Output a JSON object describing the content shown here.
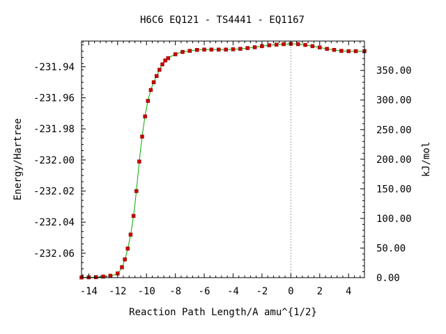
{
  "chart_data": {
    "type": "line",
    "title": "H6C6   EQ121 - TS4441 - EQ1167",
    "xlabel": "Reaction Path Length/A amu^{1/2}",
    "ylabel": "Energy/Hartree",
    "y2label": "kJ/mol",
    "xlim": [
      -14.5,
      5.1
    ],
    "ylim": [
      -232.0757,
      -231.9235
    ],
    "y2lim": [
      0.0,
      399.6
    ],
    "x_ticks": [
      -14,
      -12,
      -10,
      -8,
      -6,
      -4,
      -2,
      0,
      2,
      4
    ],
    "x_tick_labels": [
      "-14",
      "-12",
      "-10",
      "-8",
      "-6",
      "-4",
      "-2",
      "0",
      "2",
      "4"
    ],
    "y_ticks": [
      -232.06,
      -232.04,
      -232.02,
      -232.0,
      -231.98,
      -231.96,
      -231.94
    ],
    "y_tick_labels": [
      "-232.06",
      "-232.04",
      "-232.02",
      "-232.00",
      "-231.98",
      "-231.96",
      "-231.94"
    ],
    "y2_ticks": [
      0,
      50,
      100,
      150,
      200,
      250,
      300,
      350
    ],
    "y2_tick_labels": [
      "0.00",
      "50.00",
      "100.00",
      "150.00",
      "200.00",
      "250.00",
      "300.00",
      "350.00"
    ],
    "ts_x": 0,
    "grid": false,
    "legend": "none",
    "colors": {
      "line": "#00aa00",
      "points": "#cc0000"
    },
    "series": [
      {
        "x": [
          -14.5,
          -14.0,
          -13.5,
          -13.0,
          -12.5,
          -12.0,
          -11.7,
          -11.5,
          -11.3,
          -11.1,
          -10.9,
          -10.7,
          -10.5,
          -10.3,
          -10.1,
          -9.9,
          -9.7,
          -9.5,
          -9.3,
          -9.1,
          -8.9,
          -8.7,
          -8.5,
          -8.0,
          -7.5,
          -7.0,
          -6.5,
          -6.0,
          -5.5,
          -5.0,
          -4.5,
          -4.0,
          -3.5,
          -3.0,
          -2.5,
          -2.0,
          -1.5,
          -1.0,
          -0.5,
          0.0,
          0.5,
          1.0,
          1.5,
          2.0,
          2.5,
          3.0,
          3.5,
          4.0,
          4.5,
          5.1
        ],
        "y": [
          -232.0756,
          -232.0755,
          -232.0754,
          -232.075,
          -232.0745,
          -232.073,
          -232.069,
          -232.064,
          -232.057,
          -232.048,
          -232.036,
          -232.02,
          -232.001,
          -231.985,
          -231.972,
          -231.962,
          -231.955,
          -231.95,
          -231.946,
          -231.942,
          -231.9385,
          -231.936,
          -231.9345,
          -231.932,
          -231.9305,
          -231.9298,
          -231.9292,
          -231.929,
          -231.929,
          -231.929,
          -231.929,
          -231.9288,
          -231.9285,
          -231.928,
          -231.9275,
          -231.9268,
          -231.9262,
          -231.9258,
          -231.9255,
          -231.9253,
          -231.9255,
          -231.926,
          -231.9268,
          -231.9276,
          -231.9285,
          -231.9292,
          -231.9298,
          -231.93,
          -231.93,
          -231.93
        ]
      }
    ]
  }
}
